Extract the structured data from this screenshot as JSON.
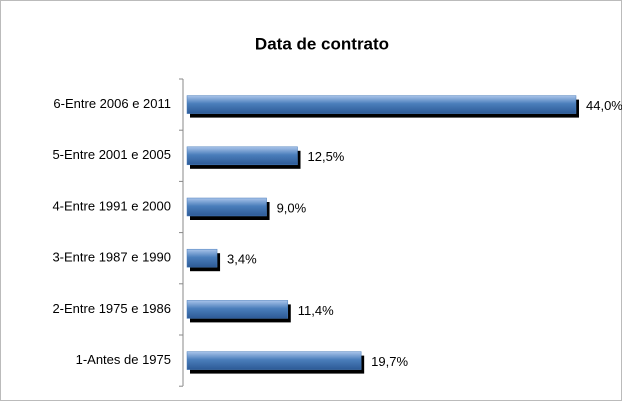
{
  "chart_data": {
    "type": "bar",
    "orientation": "horizontal",
    "title": "Data de contrato",
    "categories": [
      "6-Entre 2006 e 2011",
      "5-Entre 2001 e 2005",
      "4-Entre 1991 e 2000",
      "3-Entre 1987 e 1990",
      "2-Entre 1975 e 1986",
      "1-Antes de 1975"
    ],
    "values": [
      44.0,
      12.5,
      9.0,
      3.4,
      11.4,
      19.7
    ],
    "value_labels": [
      "44,0%",
      "12,5%",
      "9,0%",
      "3,4%",
      "11,4%",
      "19,7%"
    ],
    "color": "#4a7ebb"
  }
}
